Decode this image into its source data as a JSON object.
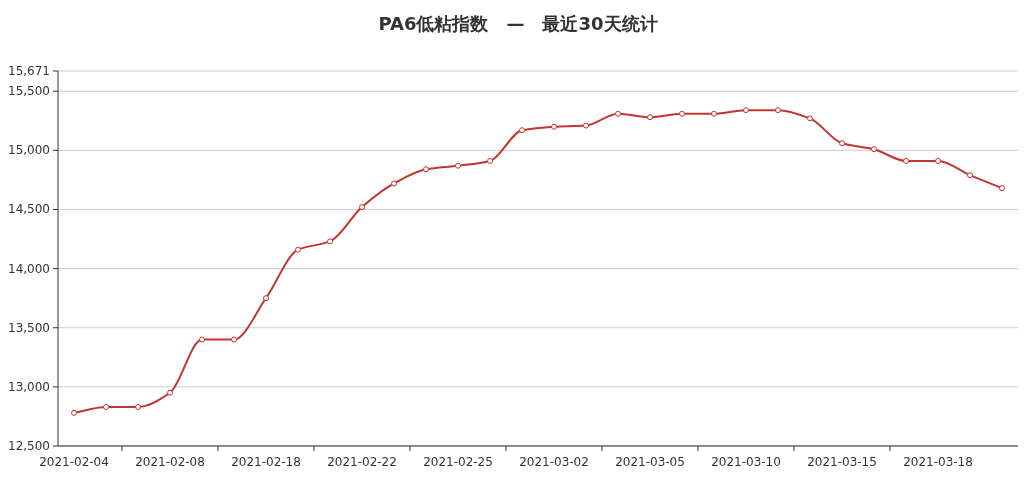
{
  "chart_data": {
    "type": "line",
    "title": "PA6低粘指数　—　最近30天统计",
    "categories": [
      "2021-02-04",
      null,
      null,
      "2021-02-08",
      null,
      null,
      "2021-02-18",
      null,
      null,
      "2021-02-22",
      null,
      null,
      "2021-02-25",
      null,
      null,
      "2021-03-02",
      null,
      null,
      "2021-03-05",
      null,
      null,
      "2021-03-10",
      null,
      null,
      "2021-03-15",
      null,
      null,
      "2021-03-18",
      null,
      null
    ],
    "series": [
      {
        "color": "#c23531",
        "values": [
          12780,
          12830,
          12830,
          12950,
          13400,
          13400,
          13750,
          14160,
          14230,
          14520,
          14720,
          14840,
          14870,
          14910,
          15170,
          15200,
          15210,
          15310,
          15280,
          15310,
          15310,
          15340,
          15340,
          15270,
          15060,
          15010,
          14910,
          14910,
          14790,
          14680
        ]
      }
    ],
    "ylim": [
      12500,
      15671
    ],
    "yticks": [
      {
        "value": 12500,
        "label": "12,500"
      },
      {
        "value": 13000,
        "label": "13,000"
      },
      {
        "value": 13500,
        "label": "13,500"
      },
      {
        "value": 14000,
        "label": "14,000"
      },
      {
        "value": 14500,
        "label": "14,500"
      },
      {
        "value": 15000,
        "label": "15,000"
      },
      {
        "value": 15500,
        "label": "15,500"
      },
      {
        "value": 15671,
        "label": "15,671"
      }
    ],
    "grid": "y",
    "marker": "circle",
    "line_style": "solid"
  }
}
